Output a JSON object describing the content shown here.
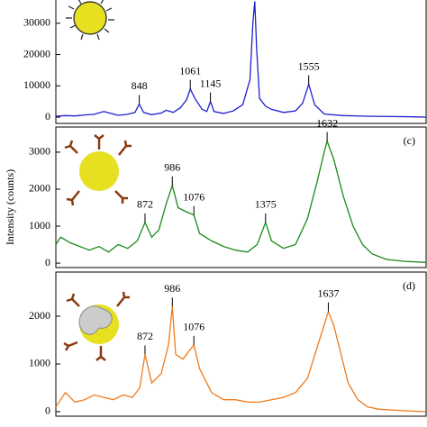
{
  "y_label": "Intensity (counts)",
  "chart_data": [
    {
      "type": "line",
      "ylim": [
        -2000,
        38000
      ],
      "yticks": [
        0,
        10000,
        20000,
        30000
      ],
      "xlim": [
        500,
        2045
      ],
      "x": [
        500,
        540,
        580,
        620,
        660,
        700,
        730,
        760,
        800,
        830,
        848,
        866,
        900,
        940,
        960,
        990,
        1020,
        1045,
        1061,
        1080,
        1110,
        1130,
        1145,
        1160,
        1200,
        1240,
        1280,
        1310,
        1322,
        1330,
        1338,
        1350,
        1375,
        1400,
        1450,
        1500,
        1530,
        1555,
        1580,
        1620,
        1700,
        1800,
        1900,
        2000,
        2045
      ],
      "series": [
        {
          "color": "#1f1fd0",
          "values": [
            300,
            500,
            400,
            700,
            900,
            1800,
            1200,
            600,
            900,
            1500,
            4200,
            1500,
            800,
            1300,
            2200,
            1500,
            3000,
            5500,
            9000,
            6000,
            2500,
            1800,
            5000,
            1800,
            1200,
            2000,
            4000,
            12000,
            30000,
            37000,
            22000,
            6000,
            3500,
            2500,
            1500,
            2000,
            4500,
            10500,
            4000,
            1000,
            500,
            300,
            200,
            100,
            0
          ]
        }
      ],
      "peaks": [
        {
          "x": 848,
          "value": 4200
        },
        {
          "x": 1061,
          "value": 9000
        },
        {
          "x": 1145,
          "value": 5000
        },
        {
          "x": 1555,
          "value": 10500
        }
      ]
    },
    {
      "type": "line",
      "ylim": [
        -120,
        3680
      ],
      "yticks": [
        0,
        1000,
        2000,
        3000
      ],
      "xlim": [
        500,
        2045
      ],
      "panel_label": "(c)",
      "x": [
        500,
        520,
        560,
        600,
        640,
        680,
        720,
        760,
        800,
        840,
        872,
        900,
        930,
        960,
        986,
        1010,
        1040,
        1076,
        1100,
        1150,
        1200,
        1250,
        1300,
        1340,
        1375,
        1400,
        1450,
        1500,
        1550,
        1590,
        1620,
        1632,
        1660,
        1700,
        1740,
        1780,
        1820,
        1880,
        1950,
        2045
      ],
      "series": [
        {
          "color": "#1a8a1a",
          "values": [
            500,
            700,
            550,
            450,
            350,
            450,
            300,
            500,
            400,
            600,
            1100,
            700,
            900,
            1600,
            2100,
            1500,
            1400,
            1300,
            800,
            600,
            450,
            350,
            300,
            500,
            1100,
            600,
            400,
            500,
            1200,
            2200,
            3000,
            3300,
            2800,
            1800,
            1000,
            500,
            250,
            100,
            50,
            20
          ]
        }
      ],
      "peaks": [
        {
          "x": 872,
          "value": 1100
        },
        {
          "x": 986,
          "value": 2100
        },
        {
          "x": 1076,
          "value": 1300
        },
        {
          "x": 1375,
          "value": 1100
        },
        {
          "x": 1632,
          "value": 3300
        }
      ]
    },
    {
      "type": "line",
      "ylim": [
        -95,
        2925
      ],
      "yticks": [
        0,
        1000,
        2000
      ],
      "xlim": [
        500,
        2045
      ],
      "panel_label": "(d)",
      "x": [
        500,
        540,
        580,
        620,
        660,
        700,
        740,
        780,
        820,
        850,
        872,
        900,
        940,
        970,
        986,
        1000,
        1030,
        1060,
        1076,
        1100,
        1150,
        1200,
        1250,
        1300,
        1350,
        1400,
        1450,
        1500,
        1550,
        1600,
        1637,
        1660,
        1690,
        1720,
        1760,
        1800,
        1850,
        1950,
        2045
      ],
      "series": [
        {
          "color": "#f07a1a",
          "values": [
            100,
            400,
            200,
            250,
            350,
            300,
            250,
            350,
            300,
            500,
            1200,
            600,
            800,
            1400,
            2200,
            1200,
            1100,
            1300,
            1400,
            900,
            400,
            250,
            250,
            200,
            200,
            250,
            300,
            400,
            700,
            1500,
            2100,
            1800,
            1200,
            600,
            250,
            100,
            50,
            20,
            0
          ]
        }
      ],
      "peaks": [
        {
          "x": 872,
          "value": 1200
        },
        {
          "x": 986,
          "value": 2200
        },
        {
          "x": 1076,
          "value": 1400
        },
        {
          "x": 1637,
          "value": 2100
        }
      ]
    }
  ]
}
